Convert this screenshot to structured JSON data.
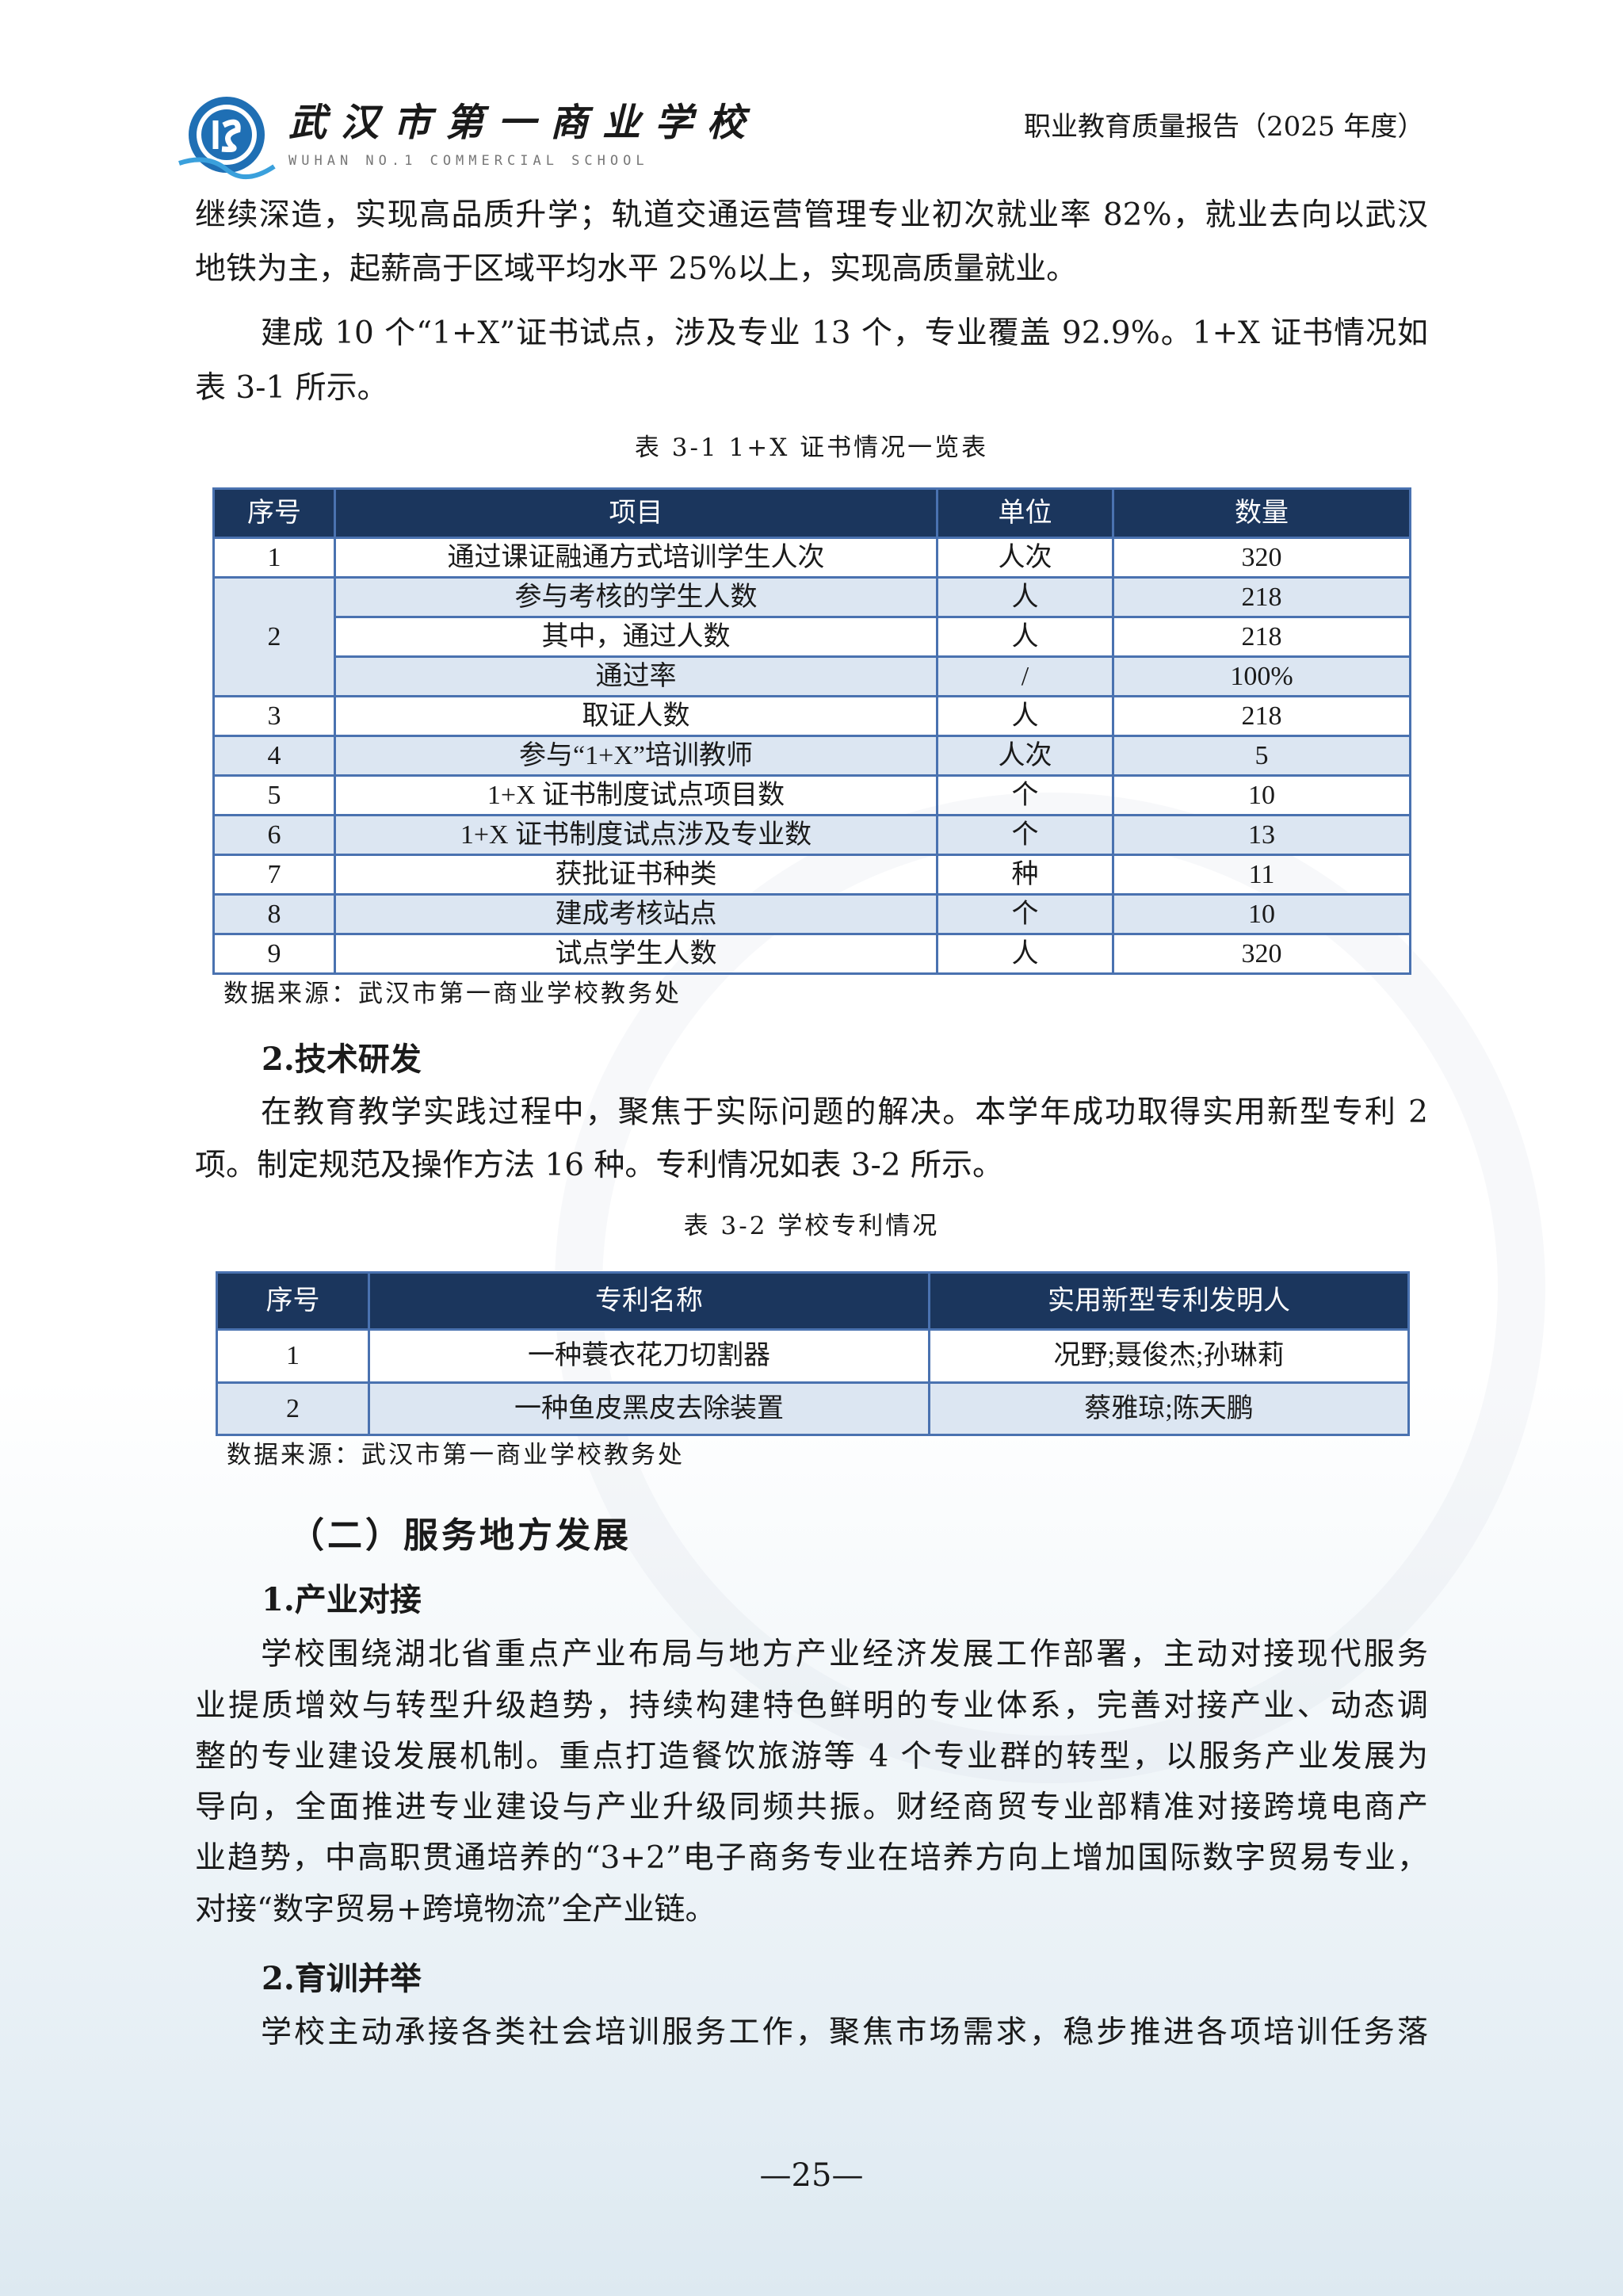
{
  "header": {
    "school_cn": "武汉市第一商业学校",
    "school_en": "WUHAN NO.1 COMMERCIAL SCHOOL",
    "report_title": "职业教育质量报告（2025 年度）",
    "logo_icon": "school-logo-icon"
  },
  "body": {
    "p1": [
      "继续深造，实现高品质升学；轨道交通运营管理专业初次就业率 82%，就业去向以武汉",
      "地铁为主，起薪高于区域平均水平 25%以上，实现高质量就业。"
    ],
    "p2": [
      "建成 10 个“1+X”证书试点，涉及专业 13 个，专业覆盖 92.9%。1+X 证书情况如",
      "表 3-1 所示。"
    ],
    "table1": {
      "caption": "表 3-1 1+X 证书情况一览表",
      "headers": [
        "序号",
        "项目",
        "单位",
        "数量"
      ],
      "rows": [
        {
          "no": "1",
          "item": "通过课证融通方式培训学生人次",
          "unit": "人次",
          "qty": "320"
        },
        {
          "no": "2",
          "item": "参与考核的学生人数",
          "unit": "人",
          "qty": "218"
        },
        {
          "no": "",
          "item": "其中，通过人数",
          "unit": "人",
          "qty": "218"
        },
        {
          "no": "",
          "item": "通过率",
          "unit": "/",
          "qty": "100%"
        },
        {
          "no": "3",
          "item": "取证人数",
          "unit": "人",
          "qty": "218"
        },
        {
          "no": "4",
          "item": "参与“1+X”培训教师",
          "unit": "人次",
          "qty": "5"
        },
        {
          "no": "5",
          "item": "1+X 证书制度试点项目数",
          "unit": "个",
          "qty": "10"
        },
        {
          "no": "6",
          "item": "1+X 证书制度试点涉及专业数",
          "unit": "个",
          "qty": "13"
        },
        {
          "no": "7",
          "item": "获批证书种类",
          "unit": "种",
          "qty": "11"
        },
        {
          "no": "8",
          "item": "建成考核站点",
          "unit": "个",
          "qty": "10"
        },
        {
          "no": "9",
          "item": "试点学生人数",
          "unit": "人",
          "qty": "320"
        }
      ],
      "source": "数据来源：武汉市第一商业学校教务处"
    },
    "h_tech": "2.技术研发",
    "p3": [
      "在教育教学实践过程中，聚焦于实际问题的解决。本学年成功取得实用新型专利 2",
      "项。制定规范及操作方法 16 种。专利情况如表 3-2 所示。"
    ],
    "table2": {
      "caption": "表 3-2 学校专利情况",
      "headers": [
        "序号",
        "专利名称",
        "实用新型专利发明人"
      ],
      "rows": [
        {
          "no": "1",
          "name": "一种蓑衣花刀切割器",
          "inventors": "况野;聂俊杰;孙琳莉"
        },
        {
          "no": "2",
          "name": "一种鱼皮黑皮去除装置",
          "inventors": "蔡雅琼;陈天鹏"
        }
      ],
      "source": "数据来源：武汉市第一商业学校教务处"
    },
    "h_service": "（二）服务地方发展",
    "h_industry": "1.产业对接",
    "p4": [
      "学校围绕湖北省重点产业布局与地方产业经济发展工作部署，主动对接现代服务",
      "业提质增效与转型升级趋势，持续构建特色鲜明的专业体系，完善对接产业、动态调",
      "整的专业建设发展机制。重点打造餐饮旅游等 4 个专业群的转型，以服务产业发展为",
      "导向，全面推进专业建设与产业升级同频共振。财经商贸专业部精准对接跨境电商产",
      "业趋势，中高职贯通培养的“3+2”电子商务专业在培养方向上增加国际数字贸易专业，",
      "对接“数字贸易+跨境物流”全产业链。"
    ],
    "h_training": "2.育训并举",
    "p5": [
      "学校主动承接各类社会培训服务工作，聚焦市场需求，稳步推进各项培训任务落"
    ]
  },
  "footer": {
    "page": "—25—"
  },
  "colors": {
    "table_header": "#1b365d",
    "table_border": "#4a72b0",
    "table_alt": "#dce6f2"
  }
}
